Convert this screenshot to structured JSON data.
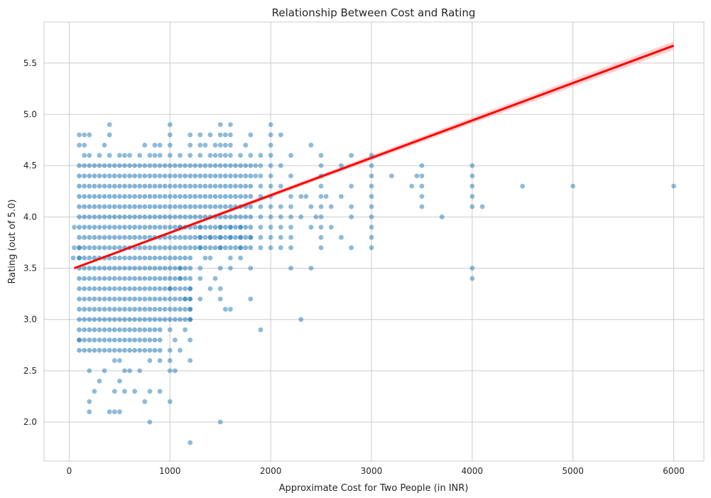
{
  "chart_data": {
    "type": "scatter",
    "title": "Relationship Between Cost and Rating",
    "xlabel": "Approximate Cost for Two People (in INR)",
    "ylabel": "Rating (out of 5.0)",
    "xlim": [
      -250,
      6300
    ],
    "ylim": [
      1.62,
      5.9
    ],
    "xticks": [
      0,
      1000,
      2000,
      3000,
      4000,
      5000,
      6000
    ],
    "yticks": [
      2.0,
      2.5,
      3.0,
      3.5,
      4.0,
      4.5,
      5.0,
      5.5
    ],
    "xtick_labels": [
      "0",
      "1000",
      "2000",
      "3000",
      "4000",
      "5000",
      "6000"
    ],
    "ytick_labels": [
      "2.0",
      "2.5",
      "3.0",
      "3.5",
      "4.0",
      "4.5",
      "5.0",
      "5.5"
    ],
    "grid": true,
    "point_color": "#1f77b4",
    "line_color": "#ff0000",
    "band_color": "#ffb3b3",
    "regression": {
      "x": [
        50,
        6000
      ],
      "y": [
        3.5,
        5.67
      ]
    },
    "clusters": [
      {
        "x": [
          100,
          950
        ],
        "y": [
          3.0,
          4.5
        ],
        "step": 50
      },
      {
        "x": [
          100,
          900
        ],
        "y": [
          2.7,
          2.9
        ],
        "step": 50
      },
      {
        "x": [
          1000,
          1800
        ],
        "y": [
          3.7,
          4.5
        ],
        "step": 50
      },
      {
        "x": [
          1000,
          1200
        ],
        "y": [
          3.0,
          3.6
        ],
        "step": 50
      }
    ],
    "points": [
      [
        100,
        3.7
      ],
      [
        100,
        3.6
      ],
      [
        100,
        2.8
      ],
      [
        50,
        3.9
      ],
      [
        50,
        3.7
      ],
      [
        40,
        3.6
      ],
      [
        200,
        2.5
      ],
      [
        250,
        2.3
      ],
      [
        300,
        2.4
      ],
      [
        400,
        2.1
      ],
      [
        450,
        2.1
      ],
      [
        500,
        2.1
      ],
      [
        200,
        2.1
      ],
      [
        200,
        2.2
      ],
      [
        450,
        2.3
      ],
      [
        500,
        2.4
      ],
      [
        550,
        2.3
      ],
      [
        650,
        2.3
      ],
      [
        750,
        2.2
      ],
      [
        800,
        2.3
      ],
      [
        900,
        2.3
      ],
      [
        800,
        2.0
      ],
      [
        1000,
        2.2
      ],
      [
        1000,
        2.5
      ],
      [
        1050,
        2.5
      ],
      [
        1000,
        2.6
      ],
      [
        1050,
        2.8
      ],
      [
        1000,
        2.9
      ],
      [
        1000,
        2.7
      ],
      [
        1000,
        3.3
      ],
      [
        550,
        2.5
      ],
      [
        600,
        2.5
      ],
      [
        700,
        2.5
      ],
      [
        800,
        2.6
      ],
      [
        900,
        2.6
      ],
      [
        350,
        2.5
      ],
      [
        450,
        2.6
      ],
      [
        500,
        2.6
      ],
      [
        100,
        4.7
      ],
      [
        100,
        4.8
      ],
      [
        150,
        4.8
      ],
      [
        200,
        4.8
      ],
      [
        150,
        4.7
      ],
      [
        150,
        4.6
      ],
      [
        200,
        4.6
      ],
      [
        300,
        4.6
      ],
      [
        350,
        4.7
      ],
      [
        400,
        4.6
      ],
      [
        400,
        4.8
      ],
      [
        400,
        4.9
      ],
      [
        500,
        4.6
      ],
      [
        550,
        4.6
      ],
      [
        600,
        4.6
      ],
      [
        700,
        4.6
      ],
      [
        750,
        4.7
      ],
      [
        800,
        4.6
      ],
      [
        850,
        4.6
      ],
      [
        900,
        4.6
      ],
      [
        900,
        4.7
      ],
      [
        850,
        4.7
      ],
      [
        1000,
        4.6
      ],
      [
        1000,
        4.7
      ],
      [
        1000,
        4.8
      ],
      [
        1000,
        4.9
      ],
      [
        1100,
        4.6
      ],
      [
        1200,
        4.6
      ],
      [
        1200,
        4.7
      ],
      [
        1200,
        4.8
      ],
      [
        1300,
        4.6
      ],
      [
        1300,
        4.7
      ],
      [
        1300,
        4.8
      ],
      [
        1350,
        4.7
      ],
      [
        1400,
        4.6
      ],
      [
        1400,
        4.8
      ],
      [
        1450,
        4.6
      ],
      [
        1450,
        4.7
      ],
      [
        1500,
        4.6
      ],
      [
        1500,
        4.7
      ],
      [
        1500,
        4.8
      ],
      [
        1500,
        4.9
      ],
      [
        1550,
        4.6
      ],
      [
        1550,
        4.7
      ],
      [
        1550,
        4.8
      ],
      [
        1600,
        4.6
      ],
      [
        1600,
        4.7
      ],
      [
        1600,
        4.8
      ],
      [
        1600,
        4.9
      ],
      [
        1700,
        4.6
      ],
      [
        1750,
        4.7
      ],
      [
        1800,
        4.6
      ],
      [
        1800,
        4.8
      ],
      [
        1100,
        3.9
      ],
      [
        1200,
        3.3
      ],
      [
        1200,
        3.2
      ],
      [
        1200,
        3.1
      ],
      [
        1200,
        3.0
      ],
      [
        1200,
        2.8
      ],
      [
        1200,
        2.6
      ],
      [
        1100,
        2.7
      ],
      [
        1150,
        2.9
      ],
      [
        1150,
        3.2
      ],
      [
        1100,
        3.4
      ],
      [
        1100,
        3.5
      ],
      [
        1200,
        1.8
      ],
      [
        1300,
        3.9
      ],
      [
        1300,
        3.8
      ],
      [
        1300,
        3.7
      ],
      [
        1300,
        3.5
      ],
      [
        1300,
        3.4
      ],
      [
        1300,
        3.2
      ],
      [
        1350,
        3.6
      ],
      [
        1400,
        3.8
      ],
      [
        1400,
        3.6
      ],
      [
        1400,
        3.3
      ],
      [
        1450,
        3.4
      ],
      [
        1500,
        3.9
      ],
      [
        1500,
        3.8
      ],
      [
        1500,
        3.7
      ],
      [
        1500,
        3.5
      ],
      [
        1500,
        3.3
      ],
      [
        1500,
        3.2
      ],
      [
        1500,
        2.0
      ],
      [
        1550,
        3.1
      ],
      [
        1600,
        3.9
      ],
      [
        1600,
        3.8
      ],
      [
        1600,
        3.6
      ],
      [
        1600,
        3.5
      ],
      [
        1600,
        3.1
      ],
      [
        1700,
        3.9
      ],
      [
        1700,
        3.8
      ],
      [
        1700,
        3.7
      ],
      [
        1700,
        3.6
      ],
      [
        1800,
        3.5
      ],
      [
        1800,
        3.2
      ],
      [
        1800,
        3.8
      ],
      [
        1850,
        4.5
      ],
      [
        1850,
        4.4
      ],
      [
        1900,
        4.6
      ],
      [
        1900,
        4.5
      ],
      [
        1900,
        4.4
      ],
      [
        1900,
        4.3
      ],
      [
        1900,
        4.2
      ],
      [
        1900,
        4.1
      ],
      [
        1900,
        4.0
      ],
      [
        1900,
        3.9
      ],
      [
        1900,
        3.8
      ],
      [
        1900,
        3.7
      ],
      [
        1900,
        2.9
      ],
      [
        2000,
        4.9
      ],
      [
        2000,
        4.8
      ],
      [
        2000,
        4.7
      ],
      [
        2000,
        4.6
      ],
      [
        2000,
        4.5
      ],
      [
        2000,
        4.4
      ],
      [
        2000,
        4.3
      ],
      [
        2000,
        4.2
      ],
      [
        2000,
        4.1
      ],
      [
        2000,
        4.0
      ],
      [
        2000,
        3.9
      ],
      [
        2000,
        3.8
      ],
      [
        2000,
        3.7
      ],
      [
        2100,
        4.8
      ],
      [
        2100,
        4.5
      ],
      [
        2100,
        4.3
      ],
      [
        2100,
        4.1
      ],
      [
        2100,
        4.0
      ],
      [
        2100,
        3.9
      ],
      [
        2100,
        3.8
      ],
      [
        2100,
        3.7
      ],
      [
        2200,
        4.6
      ],
      [
        2200,
        4.4
      ],
      [
        2200,
        4.2
      ],
      [
        2200,
        4.1
      ],
      [
        2200,
        4.0
      ],
      [
        2200,
        3.9
      ],
      [
        2200,
        3.8
      ],
      [
        2200,
        3.7
      ],
      [
        2200,
        3.5
      ],
      [
        2300,
        4.2
      ],
      [
        2300,
        4.0
      ],
      [
        2300,
        3.0
      ],
      [
        2350,
        4.2
      ],
      [
        2400,
        4.7
      ],
      [
        2400,
        4.1
      ],
      [
        2400,
        3.9
      ],
      [
        2400,
        3.5
      ],
      [
        2450,
        4.0
      ],
      [
        2500,
        4.6
      ],
      [
        2500,
        4.5
      ],
      [
        2500,
        4.4
      ],
      [
        2500,
        4.3
      ],
      [
        2500,
        4.2
      ],
      [
        2500,
        4.1
      ],
      [
        2500,
        4.0
      ],
      [
        2500,
        3.9
      ],
      [
        2500,
        3.8
      ],
      [
        2500,
        3.7
      ],
      [
        2550,
        4.2
      ],
      [
        2600,
        4.1
      ],
      [
        2600,
        3.9
      ],
      [
        2700,
        4.5
      ],
      [
        2700,
        4.2
      ],
      [
        2700,
        3.8
      ],
      [
        2800,
        4.6
      ],
      [
        2800,
        4.3
      ],
      [
        2800,
        4.1
      ],
      [
        2800,
        4.0
      ],
      [
        2800,
        3.7
      ],
      [
        3000,
        4.6
      ],
      [
        3000,
        4.5
      ],
      [
        3000,
        4.4
      ],
      [
        3000,
        4.3
      ],
      [
        3000,
        4.2
      ],
      [
        3000,
        4.1
      ],
      [
        3000,
        4.0
      ],
      [
        3000,
        3.9
      ],
      [
        3000,
        3.8
      ],
      [
        3000,
        3.7
      ],
      [
        3200,
        4.4
      ],
      [
        3400,
        4.3
      ],
      [
        3450,
        4.4
      ],
      [
        3500,
        4.5
      ],
      [
        3500,
        4.4
      ],
      [
        3500,
        4.3
      ],
      [
        3500,
        4.2
      ],
      [
        3500,
        4.1
      ],
      [
        3700,
        4.0
      ],
      [
        4000,
        4.5
      ],
      [
        4000,
        4.4
      ],
      [
        4000,
        4.3
      ],
      [
        4000,
        4.2
      ],
      [
        4000,
        4.1
      ],
      [
        4000,
        3.5
      ],
      [
        4000,
        3.4
      ],
      [
        4100,
        4.1
      ],
      [
        4500,
        4.3
      ],
      [
        5000,
        4.3
      ],
      [
        6000,
        4.3
      ]
    ]
  }
}
